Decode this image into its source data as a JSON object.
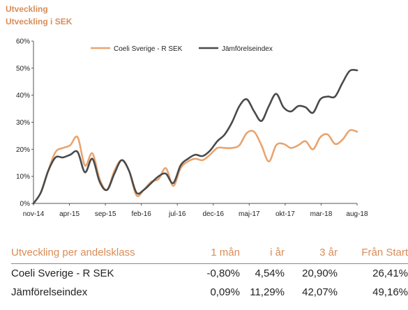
{
  "header": {
    "title": "Utveckling",
    "subtitle": "Utveckling i SEK"
  },
  "colors": {
    "accent": "#d98c57",
    "fund_line": "#e8a46f",
    "index_line": "#4a4a4a",
    "axis": "#555555"
  },
  "chart_data": {
    "type": "line",
    "title": "",
    "xlabel": "",
    "ylabel": "",
    "ylim": [
      0,
      60
    ],
    "yticks": [
      "0%",
      "10%",
      "20%",
      "30%",
      "40%",
      "50%",
      "60%"
    ],
    "grid": false,
    "legend": "top",
    "x_start": "nov-14",
    "x_end": "aug-18",
    "xticks": [
      "nov-14",
      "apr-15",
      "sep-15",
      "feb-16",
      "jul-16",
      "dec-16",
      "maj-17",
      "okt-17",
      "mar-18",
      "aug-18"
    ],
    "series": [
      {
        "name": "Coeli Sverige - R SEK",
        "color": "#e8a46f",
        "values": [
          0,
          4,
          12,
          19,
          20.5,
          21.5,
          24.5,
          14,
          18.5,
          9,
          5,
          12,
          16,
          12,
          3,
          5,
          8,
          9,
          13,
          6.5,
          13,
          15.5,
          16.5,
          16,
          18,
          20.5,
          20.5,
          20.5,
          21.5,
          26,
          26.5,
          21.5,
          15.5,
          21.5,
          22,
          20.5,
          21.5,
          23,
          20,
          24.5,
          25.5,
          22,
          23.5,
          27,
          26.5
        ]
      },
      {
        "name": "Jämförelseindex",
        "color": "#4a4a4a",
        "values": [
          0,
          4,
          12,
          17,
          17,
          18,
          19,
          11.5,
          16.5,
          8,
          5,
          11,
          16,
          12,
          4,
          5,
          7.5,
          10,
          11,
          7.5,
          14,
          16.5,
          18,
          17.5,
          19.5,
          23,
          25.5,
          30,
          36,
          38.5,
          34,
          30.5,
          36,
          40.5,
          35.5,
          34,
          36,
          35.5,
          33.5,
          38.5,
          39.5,
          39.5,
          44.5,
          49,
          49.2
        ]
      }
    ]
  },
  "table": {
    "headers": [
      "Utveckling per andelsklass",
      "1 mån",
      "i år",
      "3 år",
      "Från Start"
    ],
    "rows": [
      [
        "Coeli Sverige - R SEK",
        "-0,80%",
        "4,54%",
        "20,90%",
        "26,41%"
      ],
      [
        "Jämförelseindex",
        "0,09%",
        "11,29%",
        "42,07%",
        "49,16%"
      ]
    ]
  }
}
